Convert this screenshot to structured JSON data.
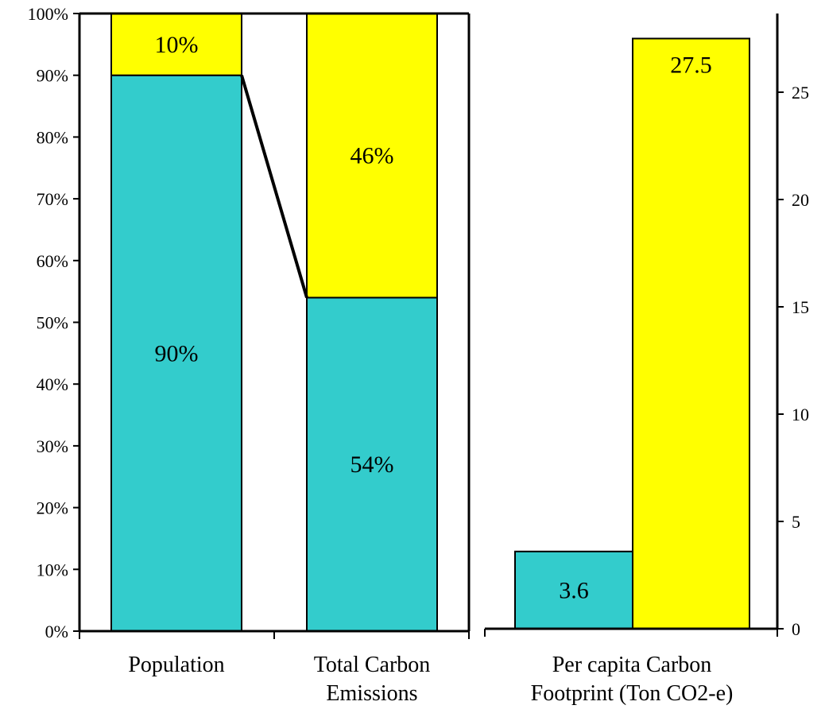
{
  "colors": {
    "teal": "#33CCCC",
    "yellow": "#FFFF00",
    "stroke": "#000000"
  },
  "chart_data": [
    {
      "type": "bar",
      "stacked": true,
      "percent_stacked": true,
      "categories": [
        "Population",
        "Total Carbon Emissions"
      ],
      "category_lines": [
        [
          "Population"
        ],
        [
          "Total Carbon",
          "Emissions"
        ]
      ],
      "series": [
        {
          "color": "#33CCCC",
          "values": [
            90,
            54
          ],
          "labels": [
            "90%",
            "54%"
          ]
        },
        {
          "color": "#FFFF00",
          "values": [
            10,
            46
          ],
          "labels": [
            "10%",
            "46%"
          ]
        }
      ],
      "ylim": [
        0,
        100
      ],
      "yticks": [
        "0%",
        "10%",
        "20%",
        "30%",
        "40%",
        "50%",
        "60%",
        "70%",
        "80%",
        "90%",
        "100%"
      ],
      "connector_line": true,
      "grid": false,
      "legend": "none"
    },
    {
      "type": "bar",
      "categories": [
        "Per capita Carbon Footprint (Ton CO2-e)"
      ],
      "category_lines": [
        [
          "Per capita Carbon",
          "Footprint (Ton CO2-e)"
        ]
      ],
      "values": [
        3.6,
        27.5
      ],
      "labels": [
        "3.6",
        "27.5"
      ],
      "colors": [
        "#33CCCC",
        "#FFFF00"
      ],
      "ylim": [
        0,
        29
      ],
      "yticks": [
        "0",
        "5",
        "10",
        "15",
        "20",
        "25"
      ],
      "yaxis_side": "right",
      "grid": false,
      "legend": "none"
    }
  ]
}
